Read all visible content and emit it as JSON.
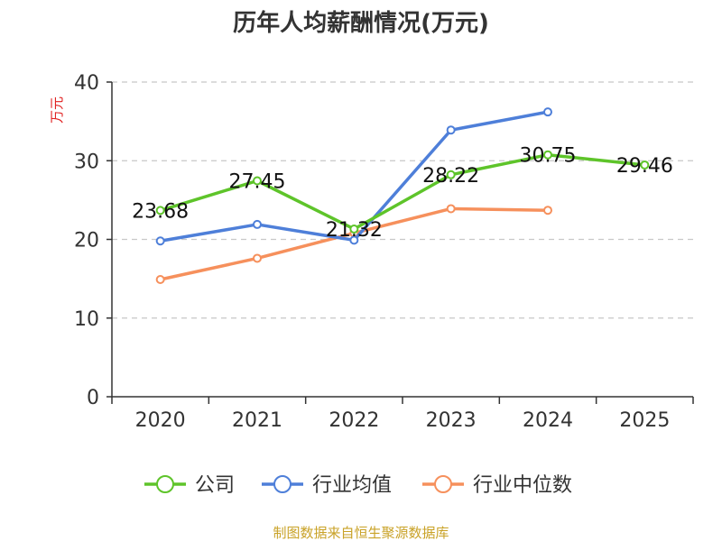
{
  "chart_data": {
    "type": "line",
    "title": "历年人均薪酬情况(万元)",
    "ylabel": "万元",
    "xlabel": "",
    "ylim": [
      0,
      40
    ],
    "yticks": [
      0,
      10,
      20,
      30,
      40
    ],
    "categories": [
      "2020",
      "2021",
      "2022",
      "2023",
      "2024",
      "2025"
    ],
    "grid": true,
    "legend_position": "bottom",
    "series": [
      {
        "name": "公司",
        "color": "#5ec42a",
        "values": [
          23.68,
          27.45,
          21.32,
          28.22,
          30.75,
          29.46
        ],
        "labels": [
          "23.68",
          "27.45",
          "21.32",
          "28.22",
          "30.75",
          "29.46"
        ]
      },
      {
        "name": "行业均值",
        "color": "#4e7fd9",
        "values": [
          19.8,
          21.9,
          19.9,
          33.9,
          36.2,
          null
        ]
      },
      {
        "name": "行业中位数",
        "color": "#f6905c",
        "values": [
          14.9,
          17.6,
          20.8,
          23.9,
          23.7,
          null
        ]
      }
    ]
  },
  "source": "制图数据来自恒生聚源数据库"
}
